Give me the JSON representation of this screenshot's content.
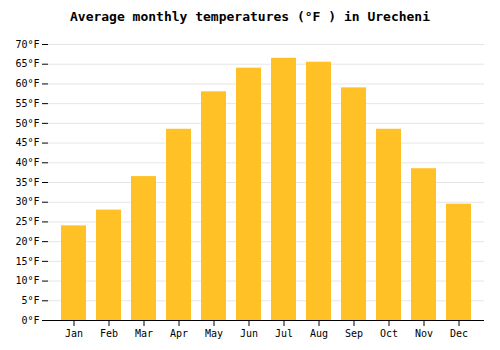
{
  "chart_data": {
    "type": "bar",
    "title": "Average monthly temperatures (°F ) in Urecheni",
    "categories": [
      "Jan",
      "Feb",
      "Mar",
      "Apr",
      "May",
      "Jun",
      "Jul",
      "Aug",
      "Sep",
      "Oct",
      "Nov",
      "Dec"
    ],
    "values": [
      24,
      28,
      36.5,
      48.5,
      58,
      64,
      66.5,
      65.5,
      59,
      48.5,
      38.5,
      29.5
    ],
    "color": "#FFC125",
    "ylim": [
      0,
      70
    ],
    "yticks": [
      {
        "value": 0,
        "label": "0°F"
      },
      {
        "value": 5,
        "label": "5°F"
      },
      {
        "value": 10,
        "label": "10°F"
      },
      {
        "value": 15,
        "label": "15°F"
      },
      {
        "value": 20,
        "label": "20°F"
      },
      {
        "value": 25,
        "label": "25°F"
      },
      {
        "value": 30,
        "label": "30°F"
      },
      {
        "value": 35,
        "label": "35°F"
      },
      {
        "value": 40,
        "label": "40°F"
      },
      {
        "value": 45,
        "label": "45°F"
      },
      {
        "value": 50,
        "label": "50°F"
      },
      {
        "value": 55,
        "label": "55°F"
      },
      {
        "value": 60,
        "label": "60°F"
      },
      {
        "value": 65,
        "label": "65°F"
      },
      {
        "value": 70,
        "label": "70°F"
      }
    ],
    "grid": true
  }
}
